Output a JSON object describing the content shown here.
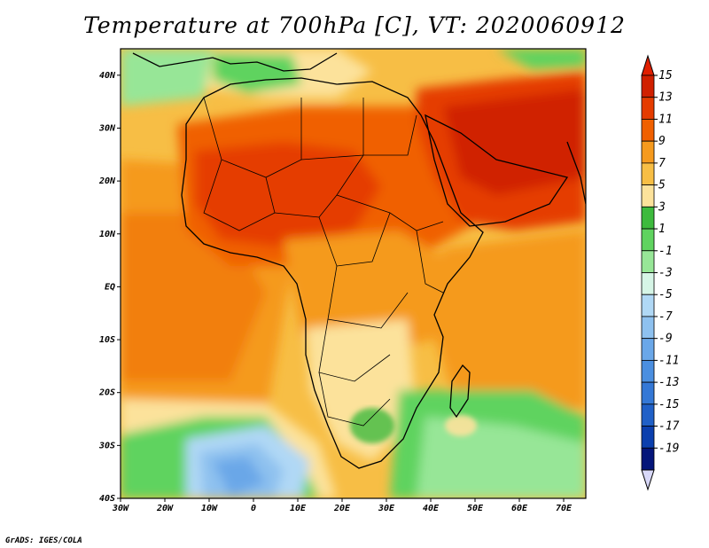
{
  "title": "Temperature at 700hPa [C], VT: 2020060912",
  "credit": "GrADS: IGES/COLA",
  "map": {
    "lon_range": [
      -30,
      75
    ],
    "lat_range": [
      -40,
      45
    ],
    "x_ticks": [
      "30W",
      "20W",
      "10W",
      "0",
      "10E",
      "20E",
      "30E",
      "40E",
      "50E",
      "60E",
      "70E"
    ],
    "y_ticks": [
      "40N",
      "30N",
      "20N",
      "10N",
      "EQ",
      "10S",
      "20S",
      "30S",
      "40S"
    ]
  },
  "colorbar": {
    "labels": [
      "15",
      "13",
      "11",
      "9",
      "7",
      "5",
      "3",
      "1",
      "-1",
      "-3",
      "-5",
      "-7",
      "-9",
      "-11",
      "-13",
      "-15",
      "-17",
      "-19"
    ],
    "colors": [
      "#d02000",
      "#e53c00",
      "#f06000",
      "#f59a1e",
      "#f7be45",
      "#fce29b",
      "#3dba3d",
      "#5fd35f",
      "#97e697",
      "#d6f5e6",
      "#b0d8f5",
      "#8ec1ef",
      "#6aa7e8",
      "#4b8fe0",
      "#3478d6",
      "#2060c7",
      "#0b3fae",
      "#04157a"
    ],
    "over_color": "#e01f00",
    "under_color": "#d8d8f8"
  }
}
